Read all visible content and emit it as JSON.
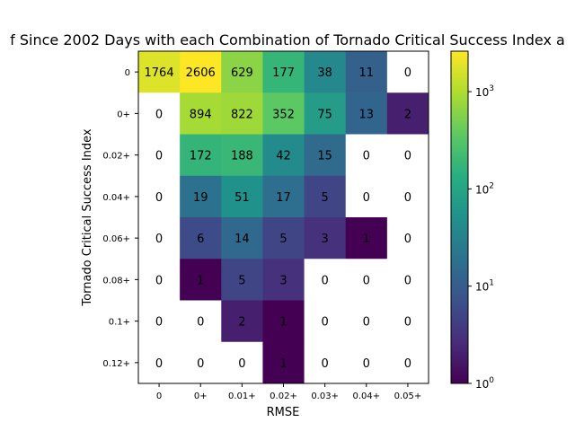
{
  "chart_data": {
    "type": "heatmap",
    "title": "f Since 2002 Days with each Combination of Tornado Critical Success Index a",
    "xlabel": "RMSE",
    "ylabel": "Tornado Critical Success Index",
    "x_categories": [
      "0",
      "0+",
      "0.01+",
      "0.02+",
      "0.03+",
      "0.04+",
      "0.05+"
    ],
    "y_categories": [
      "0",
      "0+",
      "0.02+",
      "0.04+",
      "0.06+",
      "0.08+",
      "0.1+",
      "0.12+"
    ],
    "values": [
      [
        1764,
        2606,
        629,
        177,
        38,
        11,
        0
      ],
      [
        0,
        894,
        822,
        352,
        75,
        13,
        2
      ],
      [
        0,
        172,
        188,
        42,
        15,
        0,
        0
      ],
      [
        0,
        19,
        51,
        17,
        5,
        0,
        0
      ],
      [
        0,
        6,
        14,
        5,
        3,
        1,
        0
      ],
      [
        0,
        1,
        5,
        3,
        0,
        0,
        0
      ],
      [
        0,
        0,
        2,
        1,
        0,
        0,
        0
      ],
      [
        0,
        0,
        0,
        1,
        0,
        0,
        0
      ]
    ],
    "color_scale": "log",
    "colormap": "viridis",
    "zero_color": "#ffffff",
    "clim": [
      1,
      2606
    ],
    "colorbar_ticks": [
      {
        "base": "10",
        "exp": "0",
        "value": 1
      },
      {
        "base": "10",
        "exp": "1",
        "value": 10
      },
      {
        "base": "10",
        "exp": "2",
        "value": 100
      },
      {
        "base": "10",
        "exp": "3",
        "value": 1000
      }
    ]
  }
}
